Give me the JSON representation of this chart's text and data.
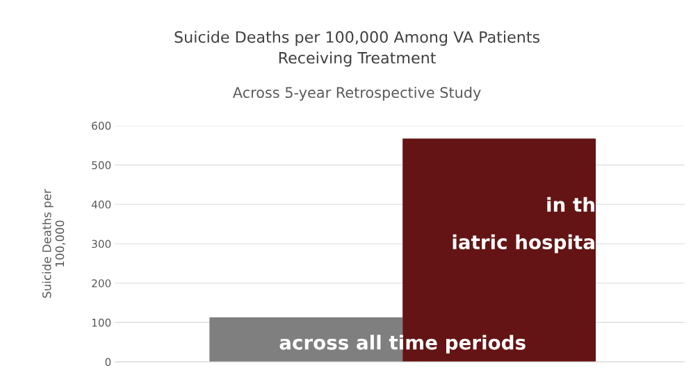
{
  "chart_data": {
    "type": "bar",
    "title": "Suicide Deaths per 100,000 Among VA Patients\nReceiving Treatment",
    "subtitle": "Across 5-year Retrospective Study",
    "ylabel": "Suicide Deaths per\n100,000",
    "categories": [
      null,
      null
    ],
    "values": [
      113,
      567
    ],
    "colors": [
      "#7f7f7f",
      "#641414"
    ],
    "ylim": [
      0,
      600
    ],
    "yticks": [
      0,
      100,
      200,
      300,
      400,
      500,
      600
    ],
    "grid": "y",
    "annotations": [
      "across all time periods",
      "in th",
      "iatric hospita"
    ]
  }
}
